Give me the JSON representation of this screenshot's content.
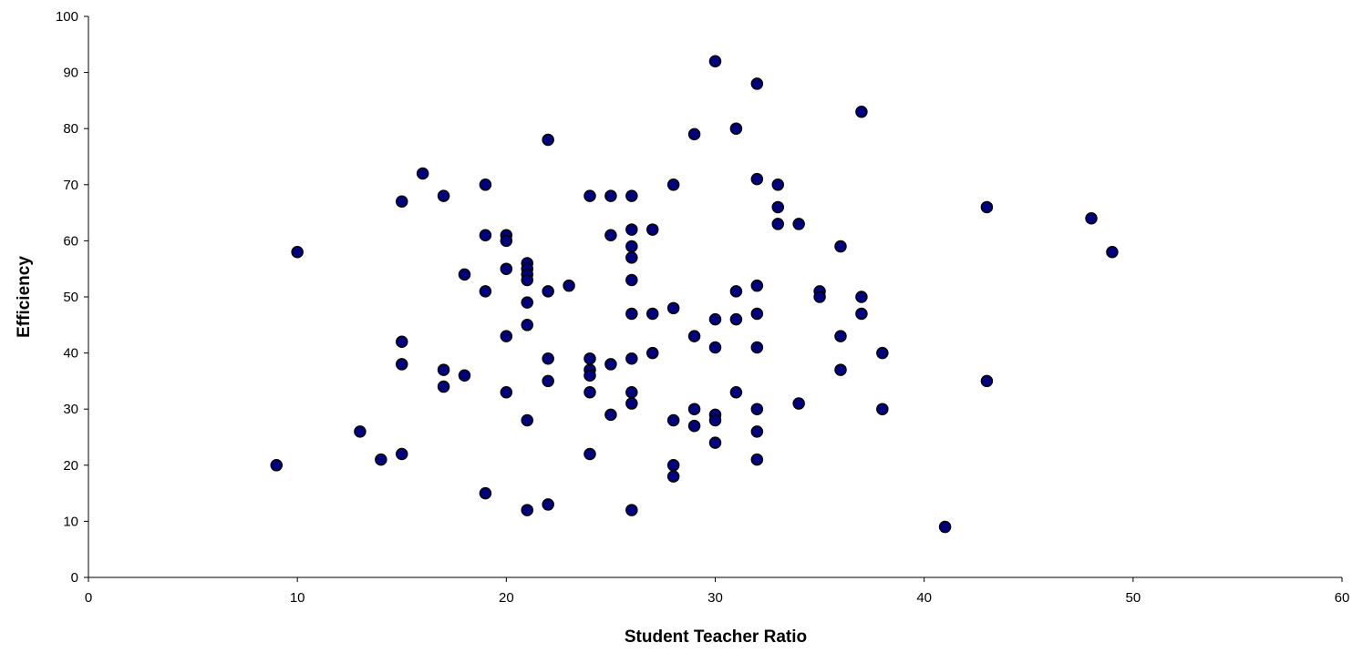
{
  "chart_data": {
    "type": "scatter",
    "title": "",
    "xlabel": "Student Teacher Ratio",
    "ylabel": "Efficiency",
    "xlim": [
      0,
      60
    ],
    "ylim": [
      0,
      100
    ],
    "x_ticks": [
      0,
      10,
      20,
      30,
      40,
      50,
      60
    ],
    "y_ticks": [
      0,
      10,
      20,
      30,
      40,
      50,
      60,
      70,
      80,
      90,
      100
    ],
    "x_tick_labels": [
      "0",
      "10",
      "20",
      "30",
      "40",
      "50",
      "60"
    ],
    "y_tick_labels": [
      "0",
      "10",
      "20",
      "30",
      "40",
      "50",
      "60",
      "70",
      "80",
      "90",
      "100"
    ],
    "grid": false,
    "legend": "none",
    "marker_fill": "#000080",
    "marker_edge": "#000000",
    "series": [
      {
        "points": [
          [
            9,
            20
          ],
          [
            10,
            58
          ],
          [
            13,
            26
          ],
          [
            14,
            21
          ],
          [
            15,
            67
          ],
          [
            15,
            42
          ],
          [
            15,
            38
          ],
          [
            15,
            22
          ],
          [
            16,
            72
          ],
          [
            17,
            68
          ],
          [
            17,
            37
          ],
          [
            17,
            34
          ],
          [
            18,
            54
          ],
          [
            18,
            36
          ],
          [
            19,
            70
          ],
          [
            19,
            61
          ],
          [
            19,
            51
          ],
          [
            19,
            15
          ],
          [
            20,
            61
          ],
          [
            20,
            60
          ],
          [
            20,
            55
          ],
          [
            20,
            43
          ],
          [
            20,
            33
          ],
          [
            21,
            56
          ],
          [
            21,
            55
          ],
          [
            21,
            54
          ],
          [
            21,
            53
          ],
          [
            21,
            49
          ],
          [
            21,
            45
          ],
          [
            21,
            28
          ],
          [
            21,
            12
          ],
          [
            22,
            78
          ],
          [
            22,
            51
          ],
          [
            22,
            39
          ],
          [
            22,
            35
          ],
          [
            22,
            13
          ],
          [
            23,
            52
          ],
          [
            24,
            68
          ],
          [
            24,
            39
          ],
          [
            24,
            37
          ],
          [
            24,
            36
          ],
          [
            24,
            33
          ],
          [
            24,
            22
          ],
          [
            25,
            68
          ],
          [
            25,
            61
          ],
          [
            25,
            38
          ],
          [
            25,
            29
          ],
          [
            26,
            68
          ],
          [
            26,
            62
          ],
          [
            26,
            59
          ],
          [
            26,
            57
          ],
          [
            26,
            53
          ],
          [
            26,
            47
          ],
          [
            26,
            39
          ],
          [
            26,
            33
          ],
          [
            26,
            31
          ],
          [
            26,
            12
          ],
          [
            27,
            62
          ],
          [
            27,
            47
          ],
          [
            27,
            40
          ],
          [
            28,
            70
          ],
          [
            28,
            48
          ],
          [
            28,
            28
          ],
          [
            28,
            20
          ],
          [
            28,
            18
          ],
          [
            29,
            79
          ],
          [
            29,
            43
          ],
          [
            29,
            30
          ],
          [
            29,
            27
          ],
          [
            30,
            92
          ],
          [
            30,
            46
          ],
          [
            30,
            41
          ],
          [
            30,
            29
          ],
          [
            30,
            28
          ],
          [
            30,
            24
          ],
          [
            31,
            80
          ],
          [
            31,
            51
          ],
          [
            31,
            46
          ],
          [
            31,
            33
          ],
          [
            32,
            88
          ],
          [
            32,
            71
          ],
          [
            32,
            52
          ],
          [
            32,
            47
          ],
          [
            32,
            41
          ],
          [
            32,
            30
          ],
          [
            32,
            26
          ],
          [
            32,
            21
          ],
          [
            33,
            70
          ],
          [
            33,
            66
          ],
          [
            33,
            63
          ],
          [
            34,
            63
          ],
          [
            34,
            31
          ],
          [
            35,
            51
          ],
          [
            35,
            50
          ],
          [
            36,
            59
          ],
          [
            36,
            43
          ],
          [
            36,
            37
          ],
          [
            37,
            83
          ],
          [
            37,
            50
          ],
          [
            37,
            47
          ],
          [
            38,
            40
          ],
          [
            38,
            30
          ],
          [
            41,
            9
          ],
          [
            43,
            66
          ],
          [
            43,
            35
          ],
          [
            48,
            64
          ],
          [
            49,
            58
          ]
        ]
      }
    ]
  }
}
